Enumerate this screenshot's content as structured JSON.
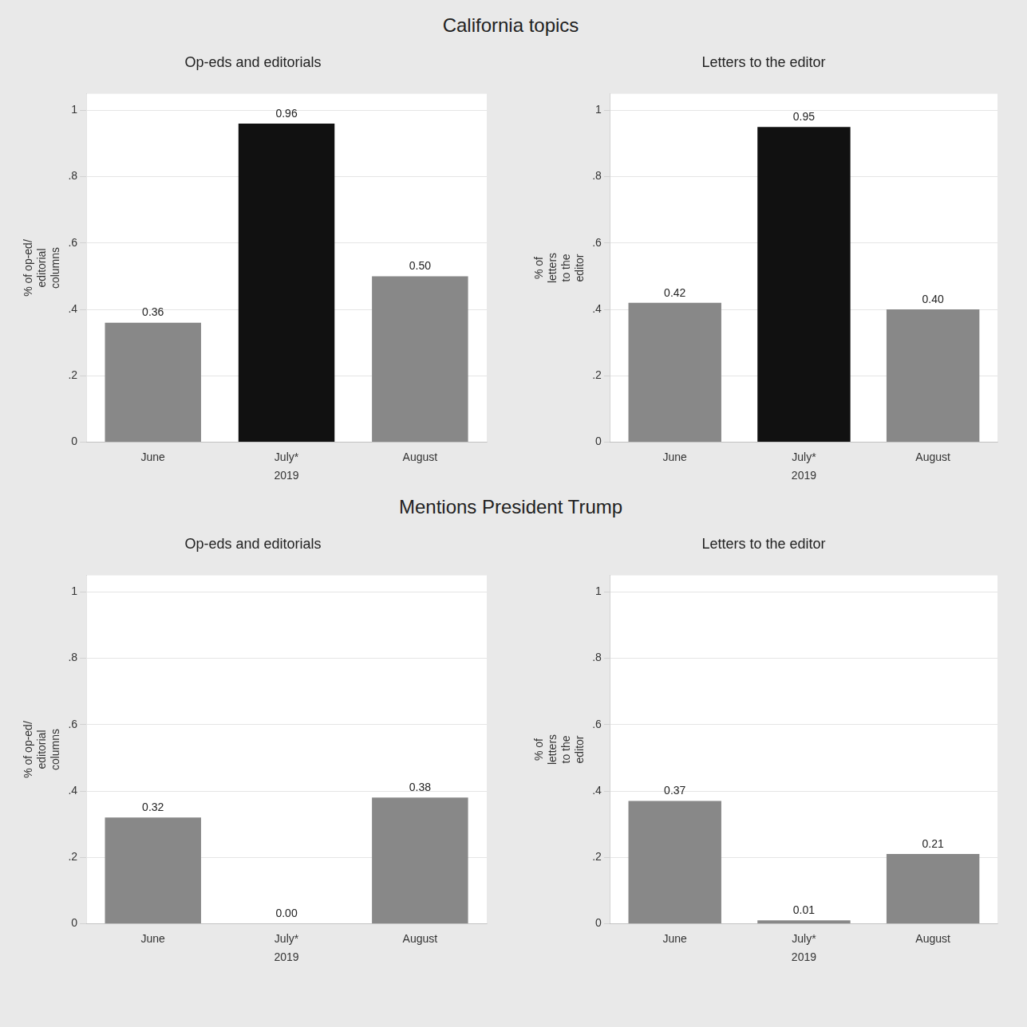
{
  "chart_data": [
    {
      "type": "bar",
      "title": "California topics",
      "subtitle": "Op-eds and editorials",
      "xlabel": "2019",
      "ylabel": "% of op-ed/\neditorial\ncolumns",
      "categories": [
        "June",
        "July*",
        "August"
      ],
      "values": [
        0.36,
        0.96,
        0.5
      ],
      "value_labels": [
        "0.36",
        "0.96",
        "0.50"
      ],
      "colors": [
        "#888888",
        "#111111",
        "#888888"
      ],
      "ylim": [
        0,
        1.05
      ],
      "yticks": [
        0,
        {
          "value": 0.2,
          "label": ".2"
        },
        {
          "value": 0.4,
          "label": ".4"
        },
        {
          "value": 0.6,
          "label": ".6"
        },
        {
          "value": 0.8,
          "label": ".8"
        },
        1
      ],
      "grid": true,
      "data_labels": true
    },
    {
      "type": "bar",
      "subtitle": "Letters to the editor",
      "xlabel": "2019",
      "ylabel": "% of\nletters\nto the\neditor",
      "categories": [
        "June",
        "July*",
        "August"
      ],
      "values": [
        0.42,
        0.95,
        0.4
      ],
      "value_labels": [
        "0.42",
        "0.95",
        "0.40"
      ],
      "colors": [
        "#888888",
        "#111111",
        "#888888"
      ],
      "ylim": [
        0,
        1.05
      ],
      "yticks": [
        0,
        {
          "value": 0.2,
          "label": ".2"
        },
        {
          "value": 0.4,
          "label": ".4"
        },
        {
          "value": 0.6,
          "label": ".6"
        },
        {
          "value": 0.8,
          "label": ".8"
        },
        1
      ],
      "grid": true,
      "data_labels": true
    },
    {
      "type": "bar",
      "title": "Mentions President Trump",
      "subtitle": "Op-eds and editorials",
      "xlabel": "2019",
      "ylabel": "% of op-ed/\neditorial\ncolumns",
      "categories": [
        "June",
        "July*",
        "August"
      ],
      "values": [
        0.32,
        0.0,
        0.38
      ],
      "value_labels": [
        "0.32",
        "0.00",
        "0.38"
      ],
      "colors": [
        "#888888",
        "#888888",
        "#888888"
      ],
      "ylim": [
        0,
        1.05
      ],
      "yticks": [
        0,
        {
          "value": 0.2,
          "label": ".2"
        },
        {
          "value": 0.4,
          "label": ".4"
        },
        {
          "value": 0.6,
          "label": ".6"
        },
        {
          "value": 0.8,
          "label": ".8"
        },
        1
      ],
      "grid": true,
      "data_labels": true
    },
    {
      "type": "bar",
      "subtitle": "Letters to the editor",
      "xlabel": "2019",
      "ylabel": "% of\nletters\nto the\neditor",
      "categories": [
        "June",
        "July*",
        "August"
      ],
      "values": [
        0.37,
        0.01,
        0.21
      ],
      "value_labels": [
        "0.37",
        "0.01",
        "0.21"
      ],
      "colors": [
        "#888888",
        "#888888",
        "#888888"
      ],
      "ylim": [
        0,
        1.05
      ],
      "yticks": [
        0,
        {
          "value": 0.2,
          "label": ".2"
        },
        {
          "value": 0.4,
          "label": ".4"
        },
        {
          "value": 0.6,
          "label": ".6"
        },
        {
          "value": 0.8,
          "label": ".8"
        },
        1
      ],
      "grid": true,
      "data_labels": true
    }
  ]
}
